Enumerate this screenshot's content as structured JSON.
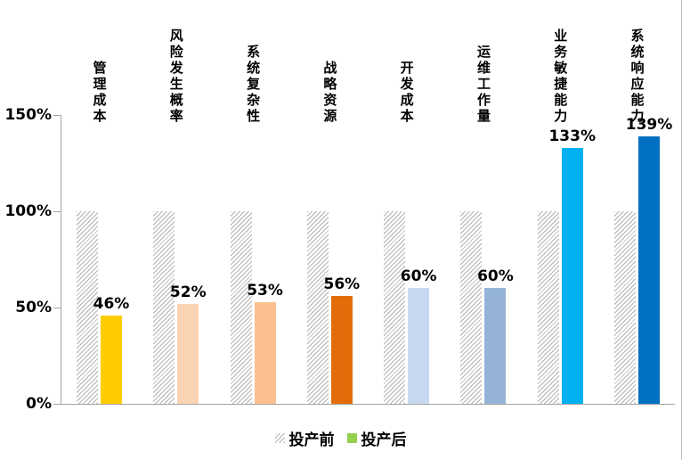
{
  "chart_data": {
    "type": "bar",
    "title": "",
    "categories": [
      "管理成本",
      "风险发生概率",
      "系统复杂性",
      "战略资源",
      "开发成本",
      "运维工作量",
      "业务敏捷能力",
      "系统响应能力"
    ],
    "series": [
      {
        "name": "投产前",
        "style": "hatched",
        "values": [
          100,
          100,
          100,
          100,
          100,
          100,
          100,
          100
        ]
      },
      {
        "name": "投产后",
        "style": "solid",
        "values": [
          46,
          52,
          53,
          56,
          60,
          60,
          133,
          139
        ]
      }
    ],
    "data_labels": [
      "46%",
      "52%",
      "53%",
      "56%",
      "60%",
      "60%",
      "133%",
      "139%"
    ],
    "bar_colors": [
      "#FFCC00",
      "#FBD4B4",
      "#FAC090",
      "#E36C0A",
      "#C6D9F1",
      "#95B3D7",
      "#00B0F0",
      "#0070C0"
    ],
    "y_ticks": [
      {
        "label": "150%",
        "value": 150
      },
      {
        "label": "100%",
        "value": 100
      },
      {
        "label": "50%",
        "value": 50
      },
      {
        "label": "0%",
        "value": 0
      }
    ],
    "ylim": [
      0,
      150
    ],
    "grid": "off",
    "legend_position": "bottom",
    "legend": [
      {
        "label": "投产前",
        "marker": "hatched"
      },
      {
        "label": "投产后",
        "marker": "#92D050"
      }
    ],
    "colors": {
      "axis": "#a6a6a6",
      "hatch_line": "#b3b3b3",
      "text": "#000000",
      "legend_after_marker": "#92D050"
    }
  }
}
